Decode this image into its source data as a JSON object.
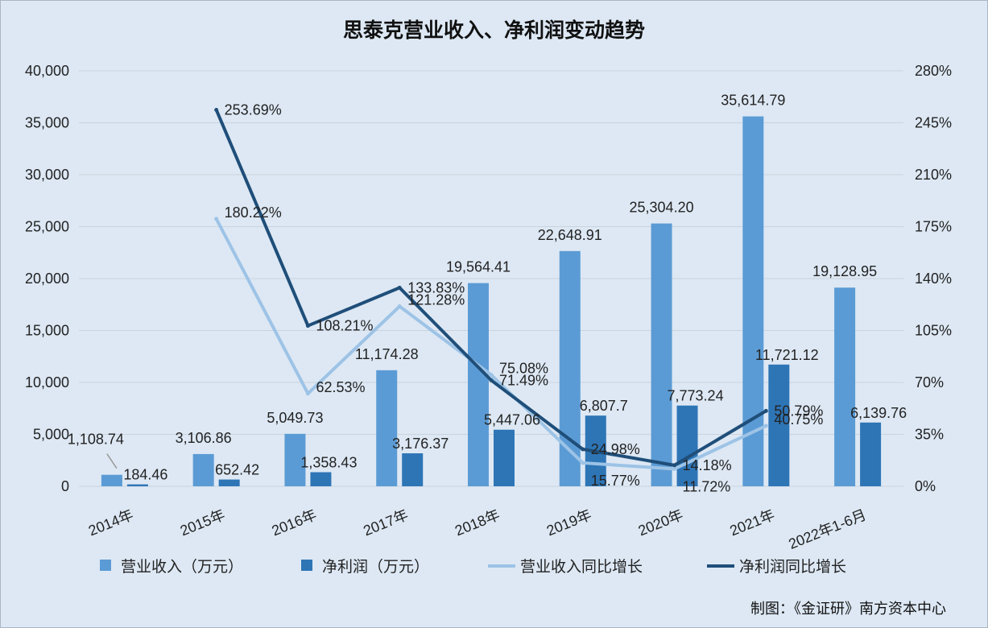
{
  "chart_data": {
    "type": "bar",
    "title": "思泰克营业收入、净利润变动趋势",
    "categories": [
      "2014年",
      "2015年",
      "2016年",
      "2017年",
      "2018年",
      "2019年",
      "2020年",
      "2021年",
      "2022年1-6月"
    ],
    "series": [
      {
        "name": "营业收入（万元）",
        "type": "bar",
        "axis": "left",
        "color": "#5b9bd5",
        "values": [
          1108.74,
          3106.86,
          5049.73,
          11174.28,
          19564.41,
          22648.91,
          25304.2,
          35614.79,
          19128.95
        ],
        "labels": [
          "1,108.74",
          "3,106.86",
          "5,049.73",
          "11,174.28",
          "19,564.41",
          "22,648.91",
          "25,304.20",
          "35,614.79",
          "19,128.95"
        ]
      },
      {
        "name": "净利润（万元）",
        "type": "bar",
        "axis": "left",
        "color": "#2e75b6",
        "values": [
          184.46,
          652.42,
          1358.43,
          3176.37,
          5447.06,
          6807.7,
          7773.24,
          11721.12,
          6139.76
        ],
        "labels": [
          "184.46",
          "652.42",
          "1,358.43",
          "3,176.37",
          "5,447.06",
          "6,807.7",
          "7,773.24",
          "11,721.12",
          "6,139.76"
        ]
      },
      {
        "name": "营业收入同比增长",
        "type": "line",
        "axis": "right",
        "color": "#9dc3e6",
        "values": [
          null,
          180.22,
          62.53,
          121.28,
          75.08,
          15.77,
          11.72,
          40.75,
          null
        ],
        "labels": [
          null,
          "180.22%",
          "62.53%",
          "121.28%",
          "75.08%",
          "15.77%",
          "11.72%",
          "40.75%",
          null
        ]
      },
      {
        "name": "净利润同比增长",
        "type": "line",
        "axis": "right",
        "color": "#1f4e79",
        "values": [
          null,
          253.69,
          108.21,
          133.83,
          71.49,
          24.98,
          14.18,
          50.79,
          null
        ],
        "labels": [
          null,
          "253.69%",
          "108.21%",
          "133.83%",
          "71.49%",
          "24.98%",
          "14.18%",
          "50.79%",
          null
        ]
      }
    ],
    "y_left": {
      "ylim": [
        0,
        40000
      ],
      "ticks": [
        "0",
        "5,000",
        "10,000",
        "15,000",
        "20,000",
        "25,000",
        "30,000",
        "35,000",
        "40,000"
      ]
    },
    "y_right": {
      "ylim": [
        0,
        280
      ],
      "ticks": [
        "0%",
        "35%",
        "70%",
        "105%",
        "140%",
        "175%",
        "210%",
        "245%",
        "280%"
      ]
    },
    "grid": true,
    "legend_position": "bottom"
  },
  "credit": "制图：《金证研》南方资本中心"
}
